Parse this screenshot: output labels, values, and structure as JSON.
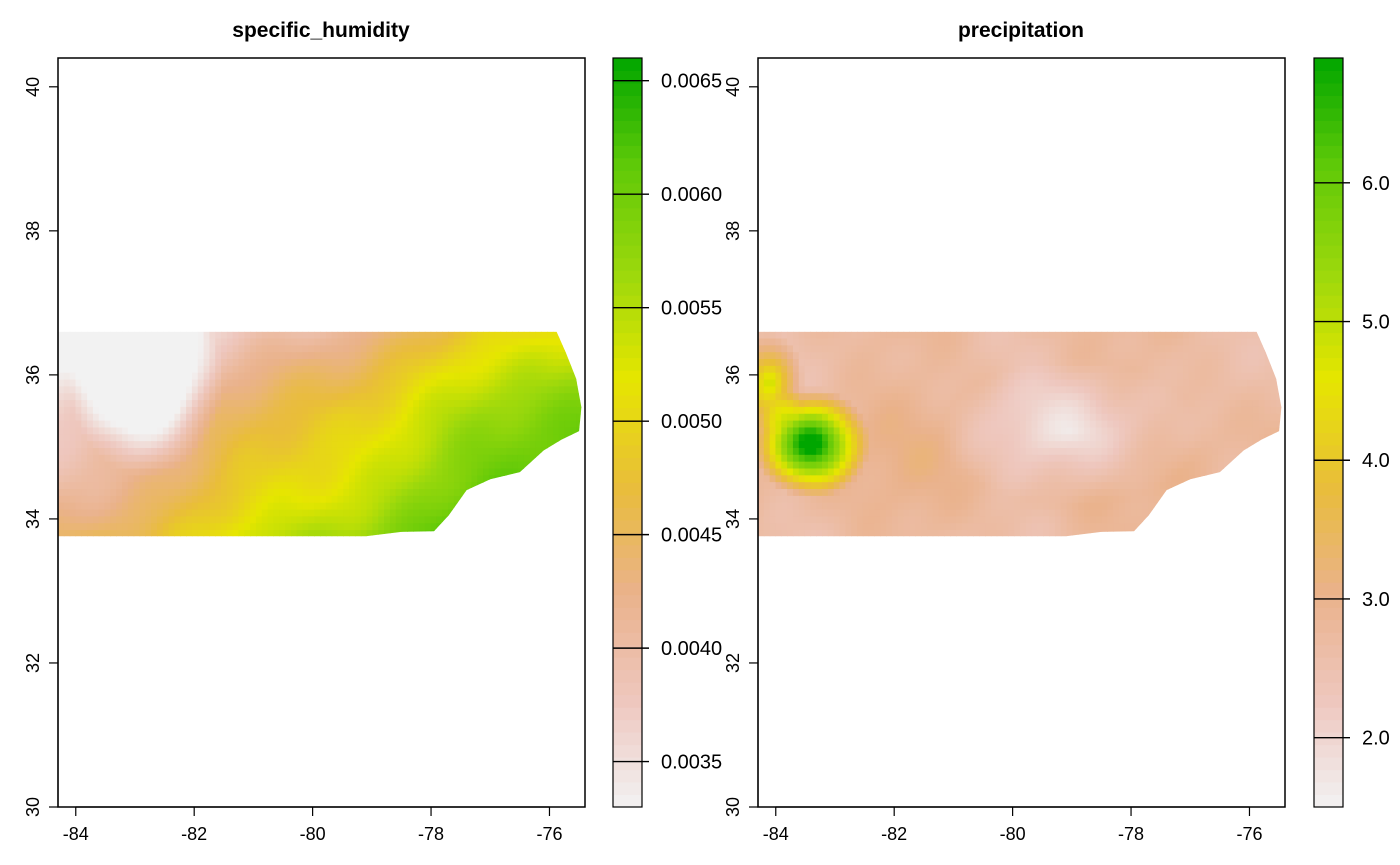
{
  "colors": {
    "ramp": [
      "#F2F2F2",
      "#EEC7BE",
      "#EAB28B",
      "#E9BD3A",
      "#E6E600",
      "#9BD80C",
      "#5FC908",
      "#00A600"
    ],
    "background": "#FFFFFF",
    "axis": "#000000"
  },
  "chart_data": [
    {
      "type": "heatmap",
      "title": "specific_humidity",
      "xlabel": "",
      "ylabel": "",
      "xlim": [
        -84.3,
        -75.4
      ],
      "ylim": [
        30,
        40.4
      ],
      "x_ticks": [
        -84,
        -82,
        -80,
        -78,
        -76
      ],
      "y_ticks": [
        30,
        32,
        34,
        36,
        38,
        40
      ],
      "x_tick_labels": [
        "-84",
        "-82",
        "-80",
        "-78",
        "-76"
      ],
      "y_tick_labels": [
        "30",
        "32",
        "34",
        "36",
        "38",
        "40"
      ],
      "grid": false,
      "legend": {
        "placement": "right",
        "range": [
          0.0033,
          0.0066
        ],
        "ticks": [
          0.0035,
          0.004,
          0.0045,
          0.005,
          0.0055,
          0.006,
          0.0065
        ],
        "tick_labels": [
          "0.0035",
          "0.0040",
          "0.0045",
          "0.0050",
          "0.0055",
          "0.0060",
          "0.0065"
        ]
      },
      "data_extent": {
        "lon": [
          -84.3,
          -75.45
        ],
        "lat": [
          33.75,
          36.6
        ]
      },
      "field": {
        "description": "low values in the northwest mountains, increasing toward the southeast coast",
        "min_value": 0.0034,
        "max_value": 0.0066
      }
    },
    {
      "type": "heatmap",
      "title": "precipitation",
      "xlabel": "",
      "ylabel": "",
      "xlim": [
        -84.3,
        -75.4
      ],
      "ylim": [
        30,
        40.4
      ],
      "x_ticks": [
        -84,
        -82,
        -80,
        -78,
        -76
      ],
      "y_ticks": [
        30,
        32,
        34,
        36,
        38,
        40
      ],
      "x_tick_labels": [
        "-84",
        "-82",
        "-80",
        "-78",
        "-76"
      ],
      "y_tick_labels": [
        "30",
        "32",
        "34",
        "36",
        "38",
        "40"
      ],
      "grid": false,
      "legend": {
        "placement": "right",
        "range": [
          1.5,
          6.9
        ],
        "ticks": [
          2.0,
          3.0,
          4.0,
          5.0,
          6.0
        ],
        "tick_labels": [
          "2.0",
          "3.0",
          "4.0",
          "5.0",
          "6.0"
        ]
      },
      "data_extent": {
        "lon": [
          -84.3,
          -75.45
        ],
        "lat": [
          33.75,
          36.6
        ]
      },
      "field": {
        "description": "high values in the southwestern mountains, low values across the central region",
        "min_value": 1.6,
        "max_value": 6.8
      }
    }
  ]
}
